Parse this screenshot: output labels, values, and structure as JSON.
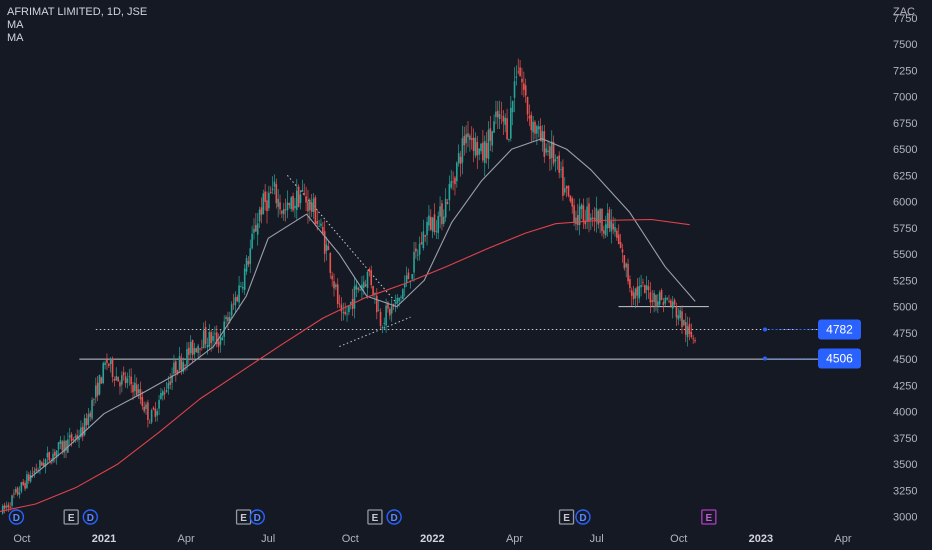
{
  "header": {
    "symbol_line": "AFRIMAT LIMITED, 1D, JSE",
    "indicators": [
      "MA",
      "MA"
    ],
    "currency": "ZAC"
  },
  "badges": {
    "price_upper": "4782",
    "price_lower": "4506"
  },
  "colors": {
    "background": "#151924",
    "up": "#26a69a",
    "down": "#ef5350",
    "ma_fast": "#9aa0ad",
    "ma_slow": "#e0424a",
    "text": "#b2b5be",
    "label_bg": "#2962ff",
    "earnings_icon": "#b03cc4"
  },
  "chart_data": {
    "type": "candlestick",
    "title": "AFRIMAT LIMITED, 1D, JSE",
    "currency": "ZAC",
    "ylim": [
      2920,
      7920
    ],
    "y_ticks": [
      3000,
      3250,
      3500,
      3750,
      4000,
      4250,
      4500,
      4750,
      5000,
      5250,
      5500,
      5750,
      6000,
      6250,
      6500,
      6750,
      7000,
      7250,
      7500,
      7750
    ],
    "x_tick_labels": [
      "Oct",
      "2021",
      "Apr",
      "Jul",
      "Oct",
      "2022",
      "Apr",
      "Jul",
      "Oct",
      "2023",
      "Apr"
    ],
    "x_tick_months": [
      0,
      3,
      6,
      9,
      12,
      15,
      18,
      21,
      24,
      27,
      30
    ],
    "x_domain_months": [
      -0.8,
      31.5
    ],
    "bold_ticks": [
      "2021",
      "2022",
      "2023"
    ],
    "price_anchors": [
      [
        -0.7,
        3050
      ],
      [
        0.4,
        3420
      ],
      [
        1.3,
        3640
      ],
      [
        2.2,
        3800
      ],
      [
        2.7,
        4180
      ],
      [
        3.1,
        4480
      ],
      [
        3.5,
        4320
      ],
      [
        4.1,
        4250
      ],
      [
        4.7,
        3930
      ],
      [
        5.1,
        4150
      ],
      [
        5.6,
        4420
      ],
      [
        6.1,
        4560
      ],
      [
        6.6,
        4700
      ],
      [
        7.2,
        4680
      ],
      [
        7.7,
        4990
      ],
      [
        8.2,
        5380
      ],
      [
        8.7,
        5930
      ],
      [
        9.2,
        6100
      ],
      [
        9.6,
        5880
      ],
      [
        10.2,
        6080
      ],
      [
        10.7,
        5900
      ],
      [
        11.2,
        5500
      ],
      [
        11.7,
        4830
      ],
      [
        12.2,
        5150
      ],
      [
        12.7,
        5320
      ],
      [
        13.1,
        4880
      ],
      [
        13.7,
        5020
      ],
      [
        14.3,
        5400
      ],
      [
        14.8,
        5780
      ],
      [
        15.3,
        5850
      ],
      [
        15.8,
        6260
      ],
      [
        16.3,
        6700
      ],
      [
        16.8,
        6420
      ],
      [
        17.4,
        6800
      ],
      [
        17.8,
        6700
      ],
      [
        18.1,
        7350
      ],
      [
        18.5,
        6850
      ],
      [
        18.9,
        6600
      ],
      [
        19.4,
        6450
      ],
      [
        19.8,
        6100
      ],
      [
        20.3,
        5850
      ],
      [
        20.8,
        5900
      ],
      [
        21.2,
        5820
      ],
      [
        21.6,
        5750
      ],
      [
        21.9,
        5500
      ],
      [
        22.3,
        5150
      ],
      [
        22.7,
        5150
      ],
      [
        23.1,
        5100
      ],
      [
        23.6,
        5050
      ],
      [
        24.0,
        4930
      ],
      [
        24.4,
        4700
      ],
      [
        24.6,
        4750
      ]
    ],
    "series": [
      {
        "name": "MA",
        "values": [
          [
            0.3,
            3370
          ],
          [
            1.5,
            3620
          ],
          [
            3.0,
            3980
          ],
          [
            4.5,
            4190
          ],
          [
            5.8,
            4380
          ],
          [
            7.0,
            4620
          ],
          [
            8.2,
            5100
          ],
          [
            9.0,
            5650
          ],
          [
            10.4,
            5880
          ],
          [
            11.6,
            5500
          ],
          [
            12.6,
            5100
          ],
          [
            13.7,
            5000
          ],
          [
            14.7,
            5250
          ],
          [
            15.7,
            5800
          ],
          [
            16.8,
            6200
          ],
          [
            17.9,
            6500
          ],
          [
            19.0,
            6600
          ],
          [
            19.9,
            6500
          ],
          [
            20.8,
            6300
          ],
          [
            22.2,
            5900
          ],
          [
            23.5,
            5380
          ],
          [
            24.6,
            5050
          ]
        ]
      },
      {
        "name": "MA",
        "values": [
          [
            -0.8,
            3050
          ],
          [
            0.5,
            3120
          ],
          [
            2.0,
            3280
          ],
          [
            3.5,
            3500
          ],
          [
            5.0,
            3800
          ],
          [
            6.5,
            4120
          ],
          [
            8.0,
            4380
          ],
          [
            9.5,
            4640
          ],
          [
            11.0,
            4890
          ],
          [
            12.5,
            5080
          ],
          [
            14.0,
            5220
          ],
          [
            15.5,
            5380
          ],
          [
            17.0,
            5550
          ],
          [
            18.4,
            5700
          ],
          [
            19.5,
            5790
          ],
          [
            21.0,
            5820
          ],
          [
            23.0,
            5830
          ],
          [
            24.4,
            5780
          ]
        ]
      }
    ],
    "annotations": {
      "horizontal_lines": [
        {
          "price": 4500,
          "from_month": 2.1,
          "to_month": 30.3,
          "style": "solid"
        },
        {
          "price": 4782,
          "from_month": 2.7,
          "to_month": 30.3,
          "style": "dotted"
        },
        {
          "price": 5000,
          "from_month": 21.8,
          "to_month": 25.1,
          "style": "solid"
        }
      ],
      "trendlines": [
        {
          "from": [
            9.7,
            6250
          ],
          "to": [
            13.7,
            5030
          ],
          "style": "dotted"
        },
        {
          "from": [
            11.6,
            4620
          ],
          "to": [
            14.2,
            4900
          ],
          "style": "dotted"
        }
      ],
      "price_labels": [
        4782,
        4506
      ]
    },
    "event_markers": [
      {
        "type": "D",
        "month": -0.2
      },
      {
        "type": "E",
        "month": 1.8
      },
      {
        "type": "D",
        "month": 2.5
      },
      {
        "type": "E",
        "month": 8.1
      },
      {
        "type": "D",
        "month": 8.6
      },
      {
        "type": "E",
        "month": 12.9
      },
      {
        "type": "D",
        "month": 13.6
      },
      {
        "type": "E",
        "month": 19.9
      },
      {
        "type": "D",
        "month": 20.5
      },
      {
        "type": "E",
        "month": 25.1
      }
    ]
  }
}
